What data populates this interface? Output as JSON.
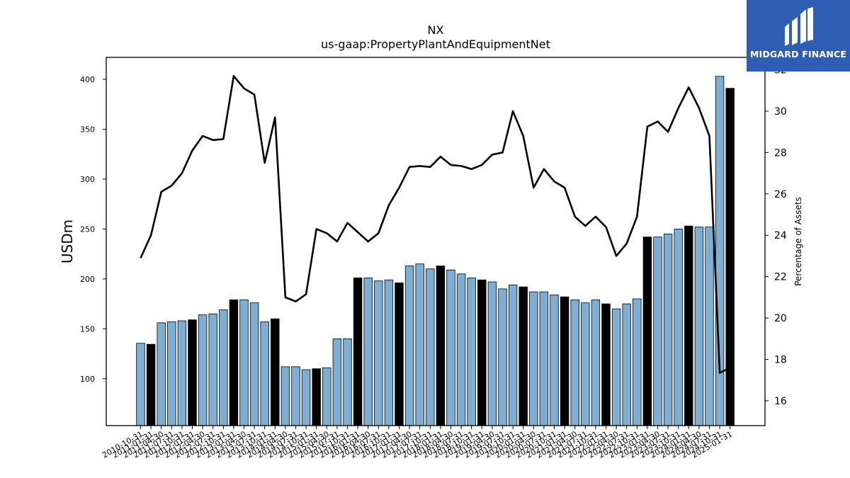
{
  "chart_data": {
    "type": "bar",
    "title": "NX",
    "subtitle": "us-gaap:PropertyPlantAndEquipmentNet",
    "ylabel": "USDm",
    "y2label": "Percentage of Assets",
    "ylim": [
      53,
      422
    ],
    "y2lim": [
      14.8,
      32.6
    ],
    "yticks": [
      100,
      150,
      200,
      250,
      300,
      350,
      400
    ],
    "y2ticks": [
      16,
      18,
      20,
      22,
      24,
      26,
      28,
      30,
      32
    ],
    "colors": {
      "bar": "#7eaed3",
      "fiscal_year_bar": "#000000",
      "line": "#000000",
      "edge": "#000000"
    },
    "categories": [
      "2010-10-31",
      "2011-01-31",
      "2011-04-30",
      "2011-07-31",
      "2011-10-31",
      "2012-01-31",
      "2012-04-30",
      "2012-07-31",
      "2012-10-31",
      "2013-01-31",
      "2013-04-30",
      "2013-07-31",
      "2013-10-31",
      "2014-01-31",
      "2014-04-30",
      "2014-07-31",
      "2014-10-31",
      "2015-01-31",
      "2015-04-30",
      "2015-07-31",
      "2015-10-31",
      "2016-01-31",
      "2016-04-30",
      "2016-07-31",
      "2016-10-31",
      "2017-01-31",
      "2017-04-30",
      "2017-07-31",
      "2017-10-31",
      "2018-01-31",
      "2018-04-30",
      "2018-07-31",
      "2018-10-31",
      "2019-01-31",
      "2019-04-30",
      "2019-07-31",
      "2019-10-31",
      "2020-01-31",
      "2020-04-30",
      "2020-07-31",
      "2020-10-31",
      "2021-01-31",
      "2021-04-30",
      "2021-07-31",
      "2021-10-31",
      "2022-01-31",
      "2022-04-30",
      "2022-07-31",
      "2022-10-31",
      "2023-01-31",
      "2023-04-30",
      "2023-07-31",
      "2023-10-31",
      "2024-01-31",
      "2024-04-30",
      "2024-07-31",
      "2024-10-31",
      "2025-01-31"
    ],
    "series": [
      {
        "type": "bar",
        "values": [
          135.5,
          134.5,
          156,
          157,
          158,
          159,
          164,
          165,
          169,
          179,
          179,
          176,
          157,
          160,
          112,
          112,
          109,
          110,
          111,
          140,
          140,
          201,
          201,
          198,
          199,
          196,
          213,
          215,
          210,
          213,
          209,
          205,
          201,
          199,
          197,
          190,
          194,
          192,
          187,
          187,
          184,
          182,
          179,
          176,
          179,
          175,
          170,
          175,
          180,
          242,
          242,
          245,
          250,
          253,
          252,
          252,
          403,
          391
        ],
        "fiscal_year_end": [
          false,
          true,
          false,
          false,
          false,
          true,
          false,
          false,
          false,
          true,
          false,
          false,
          false,
          true,
          false,
          false,
          false,
          true,
          false,
          false,
          false,
          true,
          false,
          false,
          false,
          true,
          false,
          false,
          false,
          true,
          false,
          false,
          false,
          true,
          false,
          false,
          false,
          true,
          false,
          false,
          false,
          true,
          false,
          false,
          false,
          true,
          false,
          false,
          false,
          true,
          false,
          false,
          false,
          true,
          false,
          false,
          false,
          true
        ]
      },
      {
        "type": "line",
        "axis": "right",
        "values": [
          22.9,
          24.0,
          26.1,
          26.4,
          27.0,
          28.1,
          28.8,
          28.6,
          28.65,
          31.7,
          31.1,
          30.8,
          27.5,
          29.7,
          21.0,
          20.8,
          21.15,
          24.3,
          24.1,
          23.7,
          24.6,
          24.15,
          23.7,
          24.1,
          25.45,
          26.3,
          27.3,
          27.35,
          27.3,
          27.8,
          27.4,
          27.35,
          27.2,
          27.4,
          27.9,
          28.0,
          30.0,
          28.8,
          26.3,
          27.2,
          26.6,
          26.3,
          24.9,
          24.45,
          24.9,
          24.4,
          23.0,
          23.6,
          24.9,
          29.25,
          29.5,
          29.0,
          30.15,
          31.15,
          30.15,
          28.8,
          17.35,
          17.6
        ]
      }
    ]
  },
  "logo": {
    "text": "MIDGARD FINANCE"
  }
}
